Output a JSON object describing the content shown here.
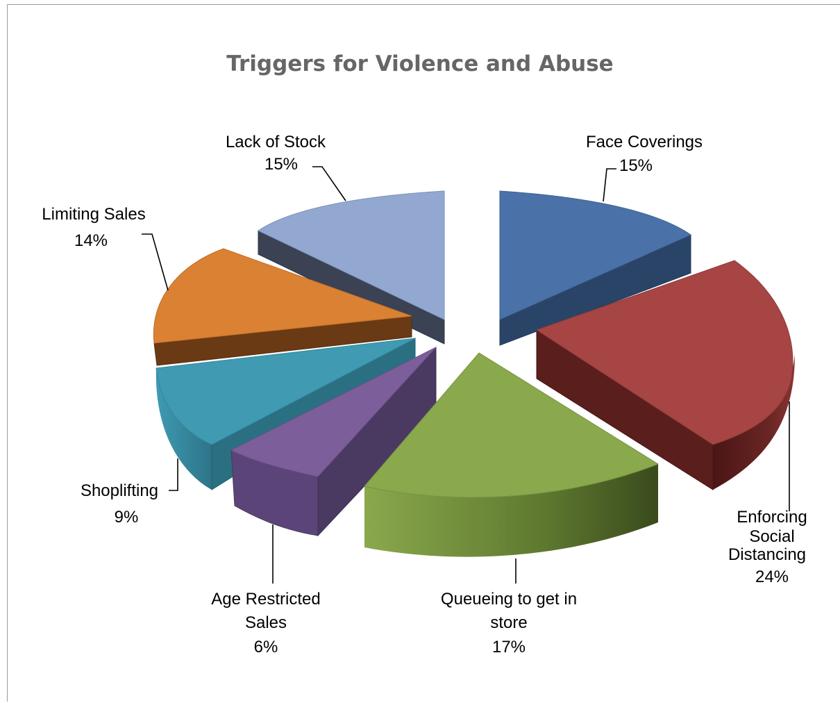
{
  "chart_data": {
    "type": "pie",
    "style": "3d-exploded",
    "title": "Triggers for Violence and Abuse",
    "slices": [
      {
        "label": "Face Coverings",
        "value": 15,
        "value_label": "15%",
        "color": "#4a72a8",
        "side_color": "#2a4468"
      },
      {
        "label": "Enforcing Social Distancing",
        "value": 24,
        "value_label": "24%",
        "color": "#a64544",
        "side_color": "#5a1e1d"
      },
      {
        "label": "Queueing to get in store",
        "value": 17,
        "value_label": "17%",
        "color": "#8aa84c",
        "side_color": "#4c5e26"
      },
      {
        "label": "Age Restricted Sales",
        "value": 6,
        "value_label": "6%",
        "color": "#7c5e9a",
        "side_color": "#4a3a62"
      },
      {
        "label": "Shoplifting",
        "value": 9,
        "value_label": "9%",
        "color": "#3f9ab2",
        "side_color": "#2b6f82"
      },
      {
        "label": "Limiting Sales",
        "value": 14,
        "value_label": "14%",
        "color": "#da8134",
        "side_color": "#6a3a14"
      },
      {
        "label": "Lack of Stock",
        "value": 15,
        "value_label": "15%",
        "color": "#92a8d0",
        "side_color": "#3a4254"
      }
    ]
  }
}
